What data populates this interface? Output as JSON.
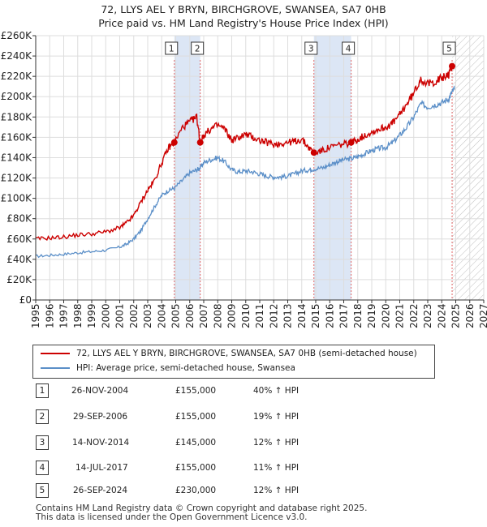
{
  "title_line1": "72, LLYS AEL Y BRYN, BIRCHGROVE, SWANSEA, SA7 0HB",
  "title_line2": "Price paid vs. HM Land Registry's House Price Index (HPI)",
  "colors": {
    "property": "#cc0000",
    "hpi": "#5b8fc8",
    "shade": "#dce6f5",
    "vline": "#e06666",
    "grid": "#dddddd"
  },
  "chart_data": {
    "type": "line",
    "title": "72, LLYS AEL Y BRYN, BIRCHGROVE, SWANSEA, SA7 0HB — Price paid vs. HM Land Registry's House Price Index (HPI)",
    "xlim": [
      1995,
      2027
    ],
    "ylim": [
      0,
      260000
    ],
    "y_ticks": [
      0,
      20000,
      40000,
      60000,
      80000,
      100000,
      120000,
      140000,
      160000,
      180000,
      200000,
      220000,
      240000,
      260000
    ],
    "y_tick_labels": [
      "£0",
      "£20K",
      "£40K",
      "£60K",
      "£80K",
      "£100K",
      "£120K",
      "£140K",
      "£160K",
      "£180K",
      "£200K",
      "£220K",
      "£240K",
      "£260K"
    ],
    "x_ticks": [
      1995,
      1996,
      1997,
      1998,
      1999,
      2000,
      2001,
      2002,
      2003,
      2004,
      2005,
      2006,
      2007,
      2008,
      2009,
      2010,
      2011,
      2012,
      2013,
      2014,
      2015,
      2016,
      2017,
      2018,
      2019,
      2020,
      2021,
      2022,
      2023,
      2024,
      2025,
      2026,
      2027
    ],
    "x_tick_labels": [
      "1995",
      "1996",
      "1997",
      "1998",
      "1999",
      "2000",
      "2001",
      "2002",
      "2003",
      "2004",
      "2005",
      "2006",
      "2007",
      "2008",
      "2009",
      "2010",
      "2011",
      "2012",
      "2013",
      "2014",
      "2015",
      "2016",
      "2017",
      "2018",
      "2019",
      "2020",
      "2021",
      "2022",
      "2023",
      "2024",
      "2025",
      "2026",
      "2027"
    ],
    "future_from": 2024.75,
    "shaded_periods": [
      [
        2004.9,
        2006.75
      ],
      [
        2014.87,
        2017.53
      ]
    ],
    "series": [
      {
        "name": "72, LLYS AEL Y BRYN, BIRCHGROVE, SWANSEA, SA7 0HB (semi-detached house)",
        "x": [
          1995.0,
          1996.0,
          1997.0,
          1998.0,
          1999.0,
          2000.0,
          2001.0,
          2001.5,
          2002.0,
          2002.5,
          2003.0,
          2003.5,
          2004.0,
          2004.5,
          2004.9,
          2005.5,
          2006.0,
          2006.5,
          2006.75,
          2007.0,
          2007.5,
          2008.0,
          2008.5,
          2009.0,
          2009.5,
          2010.0,
          2010.5,
          2011.0,
          2011.5,
          2012.0,
          2012.5,
          2013.0,
          2013.5,
          2014.0,
          2014.5,
          2014.87,
          2015.5,
          2016.0,
          2016.5,
          2017.0,
          2017.53,
          2018.0,
          2018.5,
          2019.0,
          2019.5,
          2020.0,
          2020.5,
          2021.0,
          2021.5,
          2022.0,
          2022.5,
          2023.0,
          2023.5,
          2024.0,
          2024.5,
          2024.74
        ],
        "values": [
          60000,
          61000,
          62000,
          64000,
          65000,
          67000,
          71000,
          76000,
          83000,
          96000,
          108000,
          118000,
          135000,
          150000,
          155000,
          170000,
          175000,
          180000,
          155000,
          162000,
          168000,
          172000,
          168000,
          157000,
          160000,
          163000,
          160000,
          157000,
          155000,
          153000,
          154000,
          155000,
          156000,
          158000,
          150000,
          145000,
          147000,
          150000,
          152000,
          153000,
          155000,
          158000,
          162000,
          165000,
          168000,
          170000,
          174000,
          182000,
          193000,
          203000,
          218000,
          212000,
          215000,
          218000,
          222000,
          230000
        ]
      },
      {
        "name": "HPI: Average price, semi-detached house, Swansea",
        "x": [
          1995.0,
          1996.0,
          1997.0,
          1998.0,
          1999.0,
          2000.0,
          2001.0,
          2001.5,
          2002.0,
          2002.5,
          2003.0,
          2003.5,
          2004.0,
          2004.5,
          2004.9,
          2005.5,
          2006.0,
          2006.5,
          2006.75,
          2007.0,
          2007.5,
          2008.0,
          2008.5,
          2009.0,
          2009.5,
          2010.0,
          2010.5,
          2011.0,
          2011.5,
          2012.0,
          2012.5,
          2013.0,
          2013.5,
          2014.0,
          2014.5,
          2014.87,
          2015.5,
          2016.0,
          2016.5,
          2017.0,
          2017.53,
          2018.0,
          2018.5,
          2019.0,
          2019.5,
          2020.0,
          2020.5,
          2021.0,
          2021.5,
          2022.0,
          2022.5,
          2023.0,
          2023.5,
          2024.0,
          2024.5,
          2024.74,
          2024.9
        ],
        "values": [
          43000,
          44000,
          45000,
          46500,
          47500,
          49000,
          52000,
          55000,
          60000,
          68000,
          80000,
          92000,
          103000,
          108000,
          110000,
          118000,
          125000,
          128000,
          130000,
          135000,
          138000,
          140000,
          136000,
          128000,
          126000,
          127000,
          126000,
          124000,
          122000,
          121000,
          121000,
          122000,
          124000,
          127000,
          128000,
          129000,
          130000,
          133000,
          136000,
          138000,
          139000,
          141000,
          144000,
          147000,
          149000,
          150000,
          155000,
          162000,
          170000,
          180000,
          193000,
          190000,
          192000,
          194000,
          198000,
          205000,
          207000
        ]
      }
    ],
    "sales": [
      {
        "label": "1",
        "x": 2004.9,
        "value": 155000
      },
      {
        "label": "2",
        "x": 2006.75,
        "value": 155000
      },
      {
        "label": "3",
        "x": 2014.87,
        "value": 145000
      },
      {
        "label": "4",
        "x": 2017.53,
        "value": 155000
      },
      {
        "label": "5",
        "x": 2024.74,
        "value": 230000
      }
    ],
    "legend_location": "below"
  },
  "legend": {
    "property_label": "72, LLYS AEL Y BRYN, BIRCHGROVE, SWANSEA, SA7 0HB (semi-detached house)",
    "hpi_label": "HPI: Average price, semi-detached house, Swansea"
  },
  "sales_table": [
    {
      "num": "1",
      "date": "26-NOV-2004",
      "price": "£155,000",
      "hpi": "40% ↑ HPI"
    },
    {
      "num": "2",
      "date": "29-SEP-2006",
      "price": "£155,000",
      "hpi": "19% ↑ HPI"
    },
    {
      "num": "3",
      "date": "14-NOV-2014",
      "price": "£145,000",
      "hpi": "12% ↑ HPI"
    },
    {
      "num": "4",
      "date": "14-JUL-2017",
      "price": "£155,000",
      "hpi": "11% ↑ HPI"
    },
    {
      "num": "5",
      "date": "26-SEP-2024",
      "price": "£230,000",
      "hpi": "12% ↑ HPI"
    }
  ],
  "footer": {
    "line1": "Contains HM Land Registry data © Crown copyright and database right 2025.",
    "line2": "This data is licensed under the Open Government Licence v3.0."
  }
}
